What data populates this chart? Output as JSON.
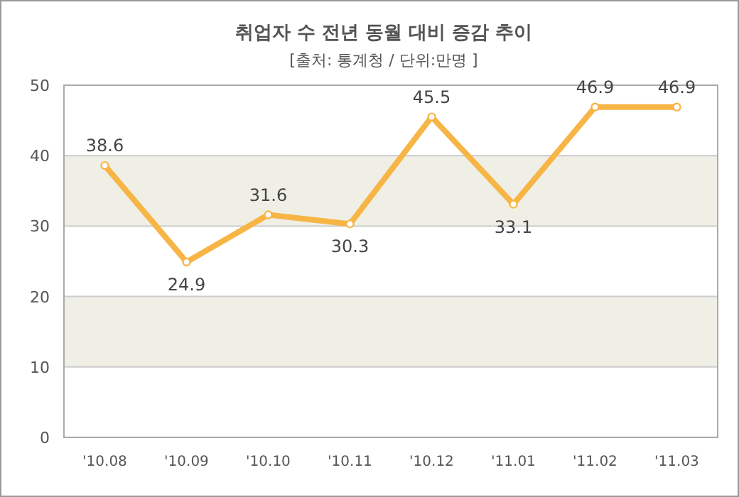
{
  "chart_data": {
    "type": "line",
    "title": "취업자 수 전년 동월 대비 증감 추이",
    "subtitle": "[출처: 통계청 / 단위:만명 ]",
    "categories": [
      "'10.08",
      "'10.09",
      "'10.10",
      "'10.11",
      "'10.12",
      "'11.01",
      "'11.02",
      "'11.03"
    ],
    "values": [
      38.6,
      24.9,
      31.6,
      30.3,
      45.5,
      33.1,
      46.9,
      46.9
    ],
    "color": "#f7b546",
    "marker": "circle",
    "line_style": "solid",
    "data_labels": true,
    "grid": "y",
    "ylim": [
      0,
      50
    ],
    "yticks": [
      0,
      10,
      20,
      30,
      40,
      50
    ],
    "bands": [
      {
        "axis": "y",
        "from": 10,
        "to": 20,
        "color": "#efefe6"
      },
      {
        "axis": "y",
        "from": 30,
        "to": 40,
        "color": "#efefe6"
      }
    ]
  }
}
